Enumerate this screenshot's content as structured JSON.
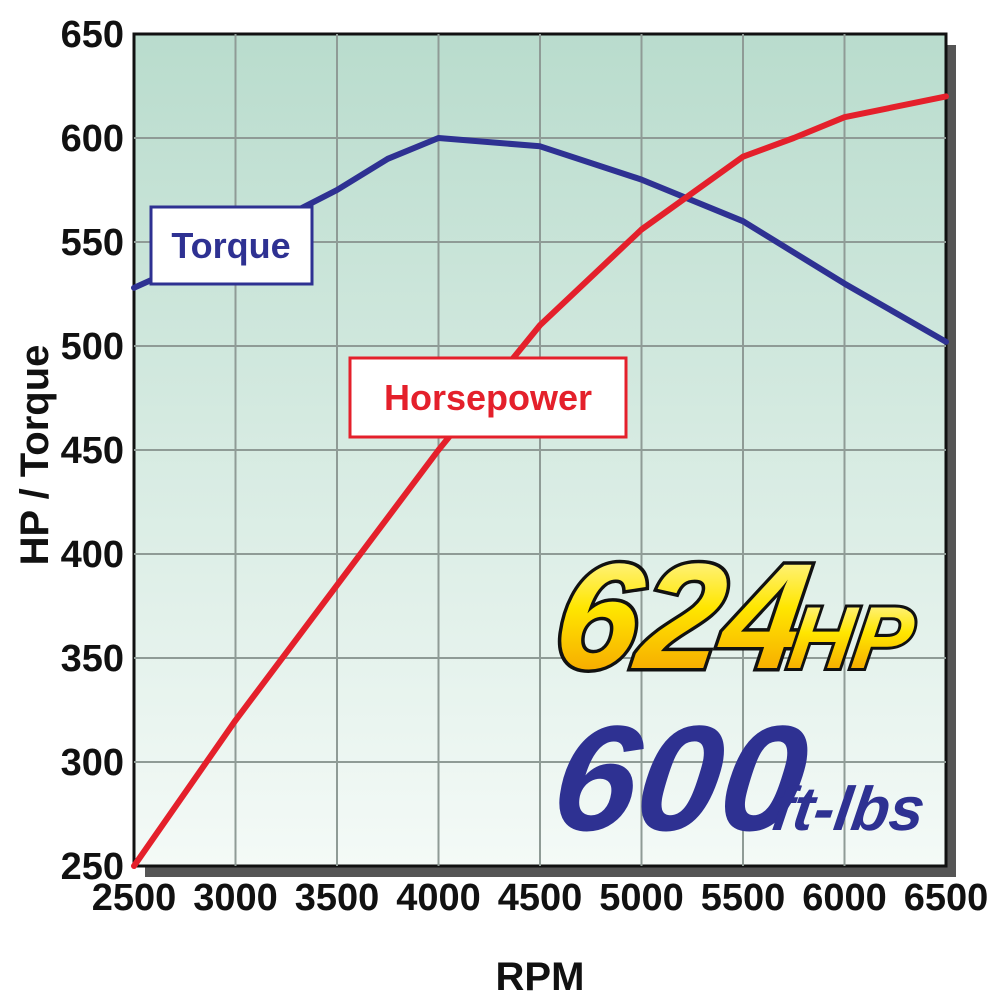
{
  "chart_data": {
    "type": "line",
    "xlabel": "RPM",
    "ylabel": "HP / Torque",
    "xlim": [
      2500,
      6500
    ],
    "ylim": [
      250,
      650
    ],
    "x_ticks": [
      "2500",
      "3000",
      "3500",
      "4000",
      "4500",
      "5000",
      "5500",
      "6000",
      "6500"
    ],
    "y_ticks": [
      "250",
      "300",
      "350",
      "400",
      "450",
      "500",
      "550",
      "600",
      "650"
    ],
    "grid": true,
    "series": [
      {
        "name": "Torque",
        "color": "#2e3192",
        "x": [
          2500,
          3000,
          3500,
          3750,
          4000,
          4500,
          5000,
          5500,
          6000,
          6500
        ],
        "y": [
          528,
          550,
          575,
          590,
          600,
          596,
          580,
          560,
          530,
          502
        ]
      },
      {
        "name": "Horsepower",
        "color": "#e4202b",
        "x": [
          2500,
          3000,
          3500,
          4000,
          4500,
          5000,
          5500,
          5750,
          6000,
          6500
        ],
        "y": [
          250,
          320,
          385,
          450,
          510,
          556,
          591,
          600,
          610,
          620
        ]
      }
    ],
    "annotations": {
      "hp_value": "624",
      "hp_unit": "HP",
      "torque_value": "600",
      "torque_unit": "ft-lbs"
    }
  },
  "colors": {
    "torque": "#2e3192",
    "horsepower": "#e4202b",
    "plot_top": "#b9dccd",
    "plot_bottom": "#f4faf7",
    "grid": "#8f9b96"
  }
}
